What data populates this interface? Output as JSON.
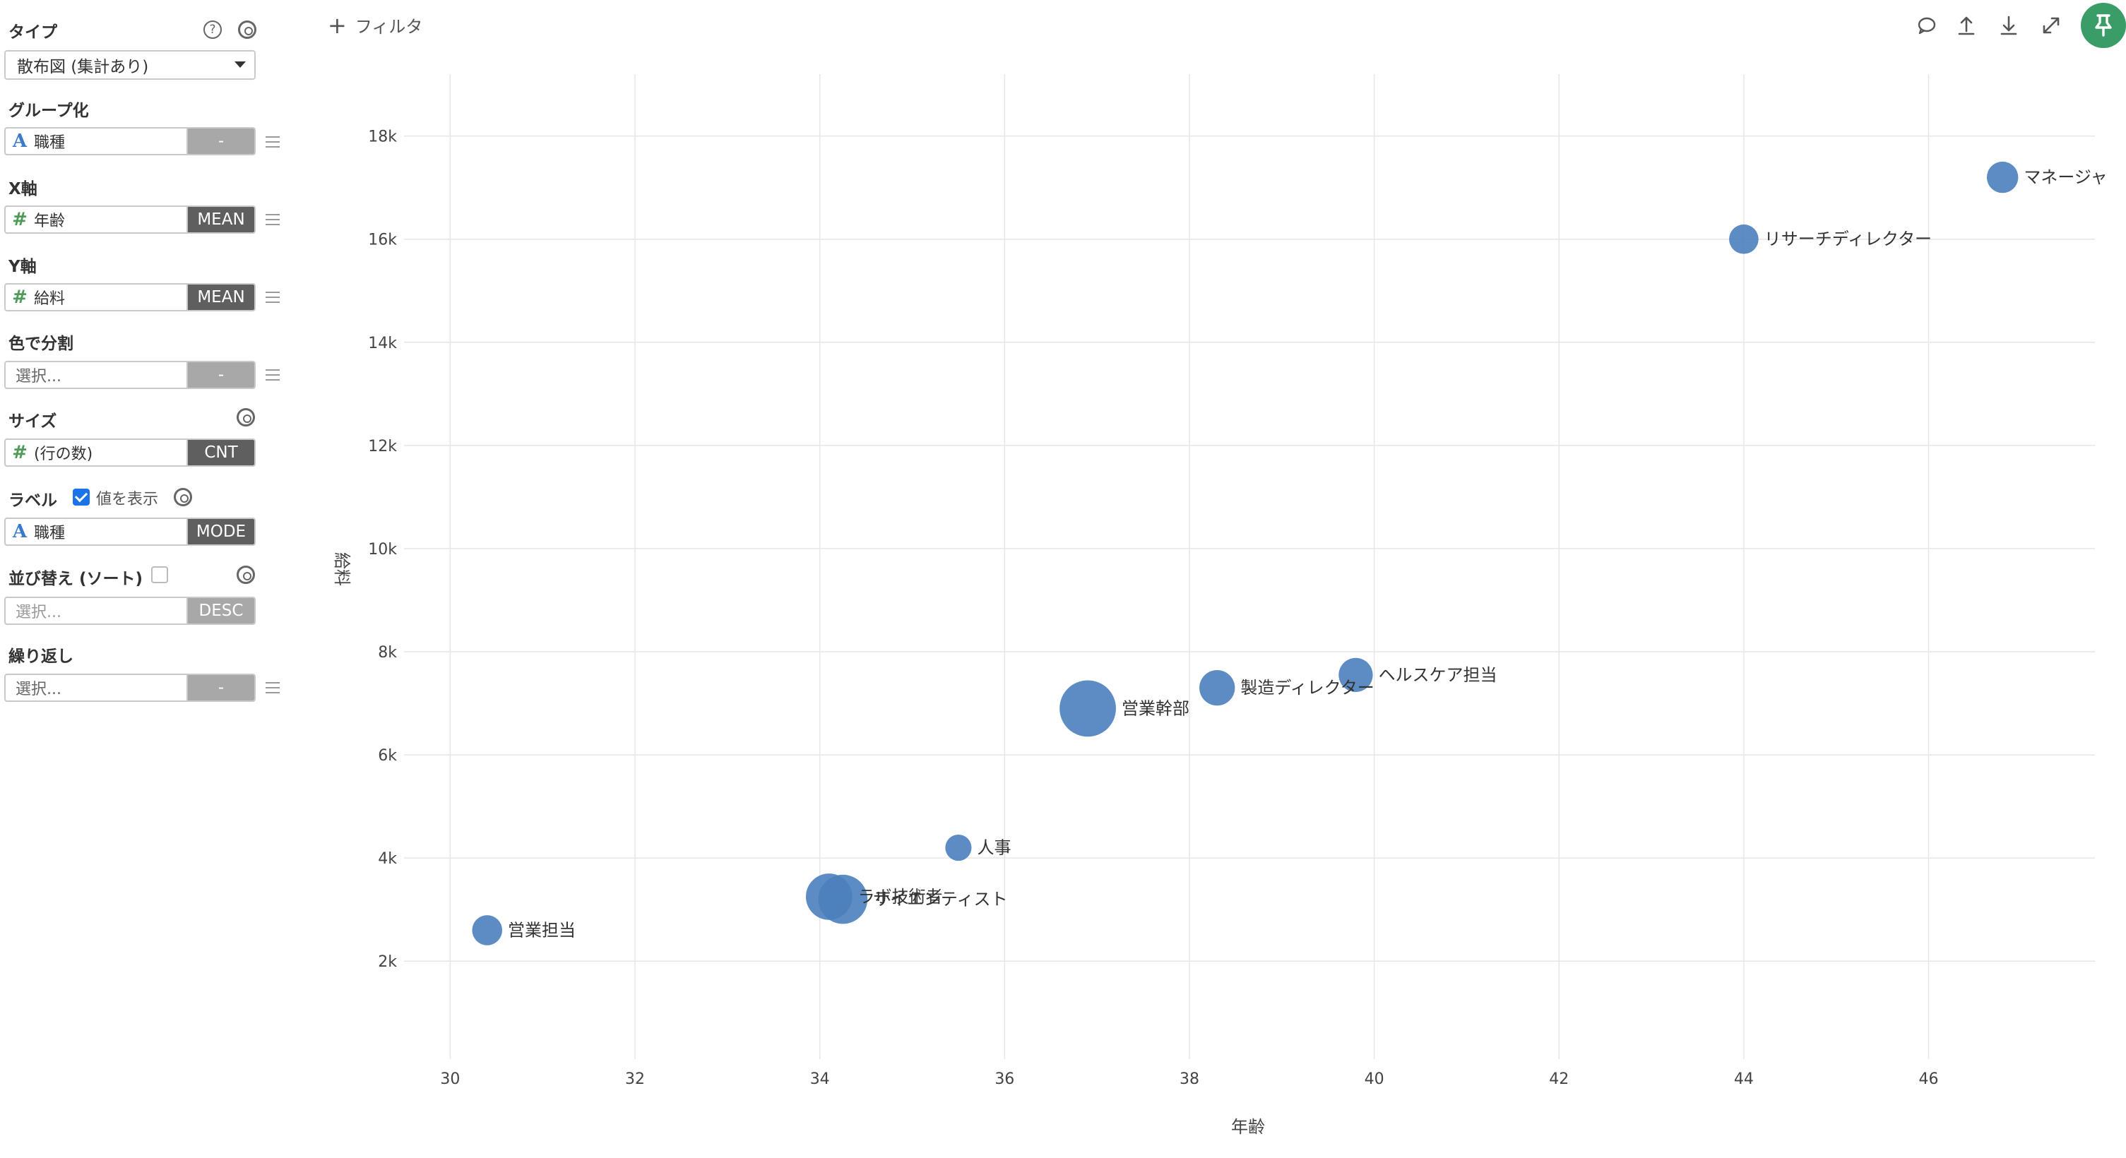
{
  "panel": {
    "type": {
      "label": "タイプ",
      "value": "散布図 (集計あり)"
    },
    "group": {
      "label": "グループ化",
      "field": "職種",
      "agg": "-"
    },
    "x_axis": {
      "label": "X軸",
      "field": "年齢",
      "agg": "MEAN"
    },
    "y_axis": {
      "label": "Y軸",
      "field": "給料",
      "agg": "MEAN"
    },
    "color": {
      "label": "色で分割",
      "placeholder": "選択...",
      "agg": "-"
    },
    "size": {
      "label": "サイズ",
      "field": "(行の数)",
      "agg": "CNT"
    },
    "label": {
      "label": "ラベル",
      "show_values": "値を表示",
      "field": "職種",
      "agg": "MODE"
    },
    "sort": {
      "label": "並び替え (ソート)",
      "placeholder": "選択...",
      "agg": "DESC"
    },
    "repeat": {
      "label": "繰り返し",
      "placeholder": "選択...",
      "agg": "-"
    },
    "help_glyph": "?"
  },
  "toolbar": {
    "filter_label": "フィルタ",
    "icons": [
      "comment-icon",
      "upload-icon",
      "download-icon",
      "expand-icon",
      "pin-icon"
    ],
    "pin_color": "#3a9c67"
  },
  "chart_data": {
    "type": "scatter",
    "xlabel": "年齢",
    "ylabel": "給料",
    "xlim": [
      29.5,
      47.8
    ],
    "ylim": [
      100,
      19200
    ],
    "x_ticks": [
      30,
      32,
      34,
      36,
      38,
      40,
      42,
      44,
      46
    ],
    "x_tick_labels": [
      "30",
      "32",
      "34",
      "36",
      "38",
      "40",
      "42",
      "44",
      "46"
    ],
    "y_ticks": [
      2000,
      4000,
      6000,
      8000,
      10000,
      12000,
      14000,
      16000,
      18000
    ],
    "y_tick_labels": [
      "2k",
      "4k",
      "6k",
      "8k",
      "10k",
      "12k",
      "14k",
      "16k",
      "18k"
    ],
    "grid": true,
    "color": "#4a7fbd",
    "points": [
      {
        "label": "営業担当",
        "x": 30.4,
        "y": 2600,
        "count": 1
      },
      {
        "label": "ラボ技術者",
        "x": 34.1,
        "y": 3250,
        "count": 5
      },
      {
        "label": "サイエンティスト",
        "x": 34.25,
        "y": 3200,
        "count": 6
      },
      {
        "label": "人事",
        "x": 35.5,
        "y": 4200,
        "count": 0.5
      },
      {
        "label": "営業幹部",
        "x": 36.9,
        "y": 6900,
        "count": 9
      },
      {
        "label": "製造ディレクター",
        "x": 38.3,
        "y": 7300,
        "count": 2
      },
      {
        "label": "ヘルスケア担当",
        "x": 39.8,
        "y": 7550,
        "count": 1.7
      },
      {
        "label": "リサーチディレクター",
        "x": 44.0,
        "y": 16000,
        "count": 0.9
      },
      {
        "label": "マネージャ",
        "x": 46.8,
        "y": 17200,
        "count": 1.2
      }
    ]
  }
}
